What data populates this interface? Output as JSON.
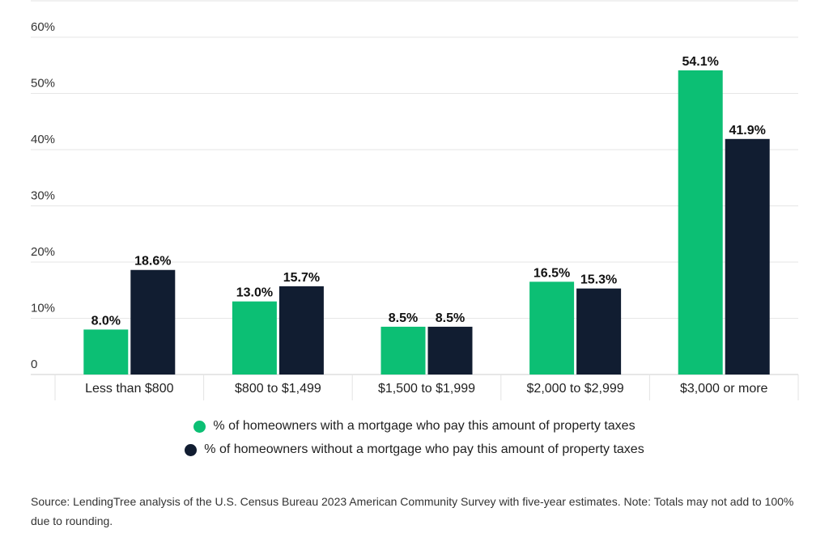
{
  "chart_data": {
    "type": "bar",
    "categories": [
      "Less than $800",
      "$800 to $1,499",
      "$1,500 to $1,999",
      "$2,000 to $2,999",
      "$3,000 or more"
    ],
    "series": [
      {
        "name": "% of homeowners with a mortgage who pay this amount of property taxes",
        "values": [
          8.0,
          13.0,
          8.5,
          16.5,
          54.1
        ],
        "labels": [
          "8.0%",
          "13.0%",
          "8.5%",
          "16.5%",
          "54.1%"
        ],
        "color": "#0cbf74"
      },
      {
        "name": "% of homeowners without a mortgage who pay this amount of property taxes",
        "values": [
          18.6,
          15.7,
          8.5,
          15.3,
          41.9
        ],
        "labels": [
          "18.6%",
          "15.7%",
          "8.5%",
          "15.3%",
          "41.9%"
        ],
        "color": "#111d31"
      }
    ],
    "yticks": [
      0,
      10,
      20,
      30,
      40,
      50,
      60
    ],
    "ytick_labels": [
      "0",
      "10%",
      "20%",
      "30%",
      "40%",
      "50%",
      "60%"
    ],
    "ylim": [
      0,
      60
    ],
    "grid": true,
    "legend_position": "bottom-center"
  },
  "source_note": "Source: LendingTree analysis of the U.S. Census Bureau 2023 American Community Survey with five-year estimates. Note: Totals may not add to 100% due to rounding."
}
